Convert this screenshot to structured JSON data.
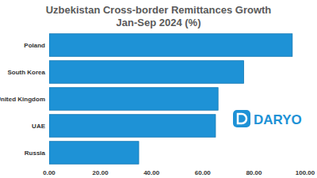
{
  "chart_data": {
    "type": "bar",
    "orientation": "horizontal",
    "title": "Uzbekistan Cross-border Remittances Growth",
    "subtitle": "Jan-Sep 2024 (%)",
    "categories": [
      "Poland",
      "South Korea",
      "United Kingdom",
      "UAE",
      "Russia"
    ],
    "values": [
      95,
      76,
      66,
      65,
      35
    ],
    "color": "#1e92d6",
    "xlim": [
      0,
      100
    ],
    "xticks": [
      {
        "value": 0,
        "label": "0.00"
      },
      {
        "value": 20,
        "label": "20.00"
      },
      {
        "value": 40,
        "label": "40.00"
      },
      {
        "value": 60,
        "label": "60.00"
      },
      {
        "value": 80,
        "label": "80.00"
      },
      {
        "value": 100,
        "label": "100.00"
      }
    ],
    "grid": false,
    "annotations": [
      "DARYO"
    ]
  }
}
